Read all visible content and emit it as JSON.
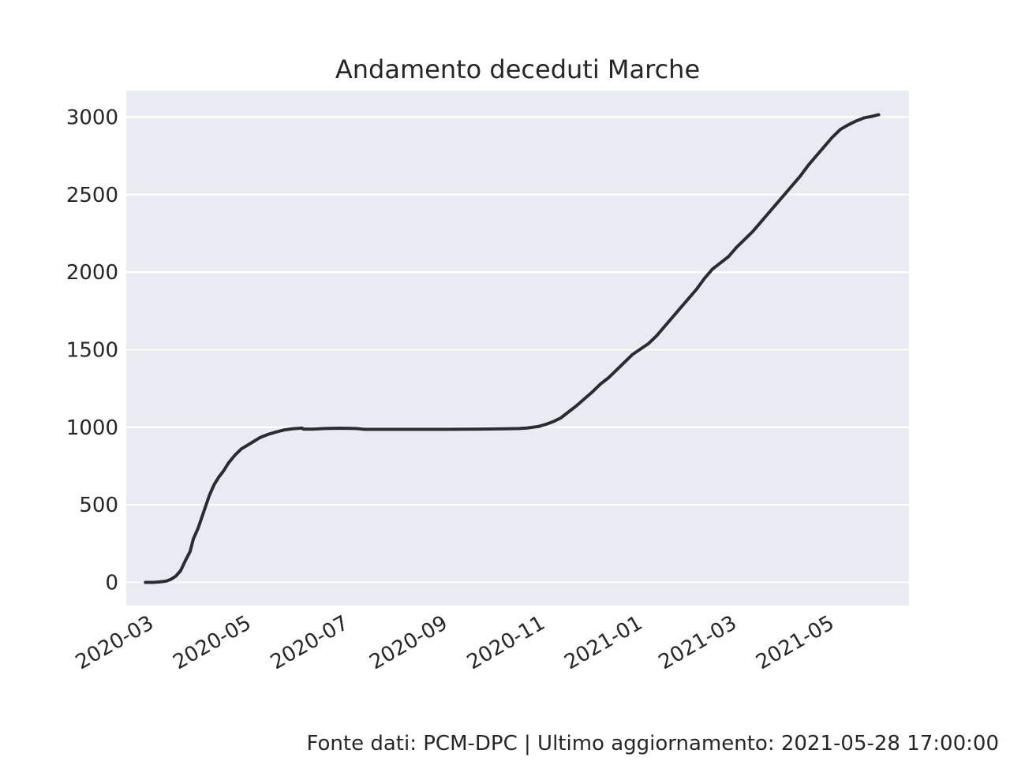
{
  "chart_data": {
    "type": "line",
    "title": "Andamento deceduti Marche",
    "xlabel": "",
    "ylabel": "",
    "x_tick_labels": [
      "2020-03",
      "2020-05",
      "2020-07",
      "2020-09",
      "2020-11",
      "2021-01",
      "2021-03",
      "2021-05"
    ],
    "y_ticks": [
      0,
      500,
      1000,
      1500,
      2000,
      2500,
      3000
    ],
    "ylim": [
      -150,
      3170
    ],
    "xlim": [
      "2020-02-12",
      "2021-06-16"
    ],
    "grid": true,
    "series": [
      {
        "name": "",
        "color": "#2b2b33",
        "points": [
          [
            "2020-02-24",
            0
          ],
          [
            "2020-02-29",
            0
          ],
          [
            "2020-03-04",
            3
          ],
          [
            "2020-03-08",
            8
          ],
          [
            "2020-03-11",
            20
          ],
          [
            "2020-03-14",
            40
          ],
          [
            "2020-03-17",
            75
          ],
          [
            "2020-03-20",
            140
          ],
          [
            "2020-03-23",
            200
          ],
          [
            "2020-03-25",
            280
          ],
          [
            "2020-03-28",
            350
          ],
          [
            "2020-03-31",
            440
          ],
          [
            "2020-04-02",
            500
          ],
          [
            "2020-04-04",
            560
          ],
          [
            "2020-04-07",
            630
          ],
          [
            "2020-04-10",
            680
          ],
          [
            "2020-04-13",
            720
          ],
          [
            "2020-04-16",
            770
          ],
          [
            "2020-04-20",
            820
          ],
          [
            "2020-04-24",
            860
          ],
          [
            "2020-04-28",
            885
          ],
          [
            "2020-05-02",
            910
          ],
          [
            "2020-05-06",
            935
          ],
          [
            "2020-05-11",
            955
          ],
          [
            "2020-05-16",
            970
          ],
          [
            "2020-05-21",
            983
          ],
          [
            "2020-05-26",
            990
          ],
          [
            "2020-06-01",
            995
          ],
          [
            "2020-06-02",
            988
          ],
          [
            "2020-06-08",
            988
          ],
          [
            "2020-06-15",
            992
          ],
          [
            "2020-06-25",
            994
          ],
          [
            "2020-07-05",
            992
          ],
          [
            "2020-07-10",
            987
          ],
          [
            "2020-08-01",
            987
          ],
          [
            "2020-09-01",
            987
          ],
          [
            "2020-09-20",
            988
          ],
          [
            "2020-10-05",
            990
          ],
          [
            "2020-10-15",
            992
          ],
          [
            "2020-10-20",
            995
          ],
          [
            "2020-10-27",
            1005
          ],
          [
            "2020-11-01",
            1020
          ],
          [
            "2020-11-05",
            1035
          ],
          [
            "2020-11-10",
            1060
          ],
          [
            "2020-11-15",
            1100
          ],
          [
            "2020-11-20",
            1140
          ],
          [
            "2020-11-25",
            1185
          ],
          [
            "2020-11-30",
            1230
          ],
          [
            "2020-12-05",
            1280
          ],
          [
            "2020-12-10",
            1320
          ],
          [
            "2020-12-15",
            1370
          ],
          [
            "2020-12-20",
            1420
          ],
          [
            "2020-12-25",
            1470
          ],
          [
            "2020-12-30",
            1505
          ],
          [
            "2021-01-04",
            1540
          ],
          [
            "2021-01-09",
            1590
          ],
          [
            "2021-01-14",
            1650
          ],
          [
            "2021-01-19",
            1710
          ],
          [
            "2021-01-24",
            1770
          ],
          [
            "2021-01-29",
            1830
          ],
          [
            "2021-02-03",
            1890
          ],
          [
            "2021-02-08",
            1960
          ],
          [
            "2021-02-13",
            2020
          ],
          [
            "2021-02-18",
            2060
          ],
          [
            "2021-02-23",
            2100
          ],
          [
            "2021-02-28",
            2160
          ],
          [
            "2021-03-05",
            2210
          ],
          [
            "2021-03-10",
            2260
          ],
          [
            "2021-03-15",
            2320
          ],
          [
            "2021-03-20",
            2380
          ],
          [
            "2021-03-25",
            2440
          ],
          [
            "2021-03-30",
            2500
          ],
          [
            "2021-04-04",
            2560
          ],
          [
            "2021-04-09",
            2620
          ],
          [
            "2021-04-14",
            2690
          ],
          [
            "2021-04-19",
            2750
          ],
          [
            "2021-04-24",
            2810
          ],
          [
            "2021-04-29",
            2870
          ],
          [
            "2021-05-04",
            2920
          ],
          [
            "2021-05-09",
            2950
          ],
          [
            "2021-05-14",
            2975
          ],
          [
            "2021-05-19",
            2995
          ],
          [
            "2021-05-24",
            3005
          ],
          [
            "2021-05-28",
            3015
          ]
        ]
      }
    ]
  },
  "footer": {
    "source_note": "Fonte dati: PCM-DPC | Ultimo aggiornamento: 2021-05-28 17:00:00"
  },
  "colors": {
    "plot_background": "#eaeaf2",
    "grid": "#ffffff",
    "text": "#262626",
    "line": "#2b2b33"
  }
}
